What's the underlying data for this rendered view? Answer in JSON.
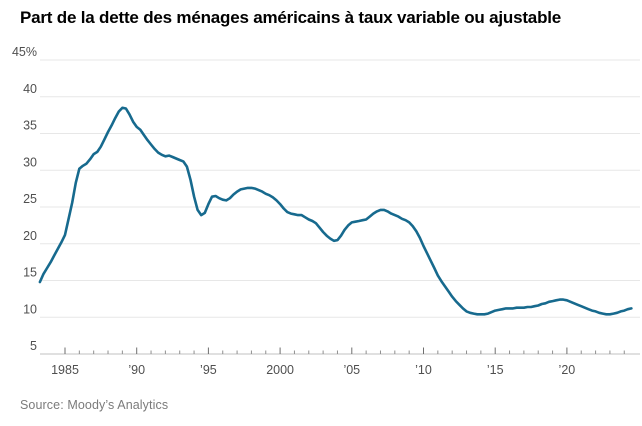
{
  "title": "Part de la dette des ménages américains à taux variable ou ajustable",
  "source": "Source: Moody’s Analytics",
  "colors": {
    "line": "#176A8E",
    "gridline": "#e7e7e7",
    "axis": "#c0c0c0",
    "tick": "#8f8f8f",
    "label": "#4f4f4f",
    "title": "#000000",
    "source_text": "#7b7b7b",
    "background": "#ffffff"
  },
  "chart_data": {
    "type": "line",
    "title": "Part de la dette des ménages américains à taux variable ou ajustable",
    "xlabel": "",
    "ylabel": "",
    "unit": "%",
    "grid": "horizontal",
    "legend": "none",
    "ylim": [
      5,
      45
    ],
    "ytick_values": [
      45,
      40,
      35,
      30,
      25,
      20,
      15,
      10,
      5
    ],
    "ytick_labels": [
      "45%",
      "40",
      "35",
      "30",
      "25",
      "20",
      "15",
      "10",
      "5"
    ],
    "xlim": [
      1983.25,
      2024.6
    ],
    "xtick_major_years": [
      1985,
      1990,
      1995,
      2000,
      2005,
      2010,
      2015,
      2020
    ],
    "xtick_labels": [
      "1985",
      "’90",
      "’95",
      "2000",
      "’05",
      "’10",
      "’15",
      "’20"
    ],
    "xtick_minor_first": 1985,
    "xtick_minor_last": 2024,
    "series": [
      {
        "name": "Part de la dette des ménages à taux variable ou ajustable (%)",
        "color": "#176A8E",
        "points": [
          [
            1983.25,
            14.8
          ],
          [
            1983.5,
            15.9
          ],
          [
            1983.75,
            16.7
          ],
          [
            1984,
            17.5
          ],
          [
            1984.25,
            18.4
          ],
          [
            1984.5,
            19.3
          ],
          [
            1984.75,
            20.2
          ],
          [
            1985,
            21.2
          ],
          [
            1985.25,
            23.4
          ],
          [
            1985.5,
            25.6
          ],
          [
            1985.75,
            28.3
          ],
          [
            1986,
            30.2
          ],
          [
            1986.25,
            30.6
          ],
          [
            1986.5,
            30.9
          ],
          [
            1986.75,
            31.5
          ],
          [
            1987,
            32.2
          ],
          [
            1987.25,
            32.5
          ],
          [
            1987.5,
            33.2
          ],
          [
            1987.75,
            34.2
          ],
          [
            1988,
            35.2
          ],
          [
            1988.25,
            36.1
          ],
          [
            1988.5,
            37.1
          ],
          [
            1988.75,
            38
          ],
          [
            1989,
            38.5
          ],
          [
            1989.25,
            38.4
          ],
          [
            1989.5,
            37.6
          ],
          [
            1989.75,
            36.6
          ],
          [
            1990,
            35.9
          ],
          [
            1990.25,
            35.5
          ],
          [
            1990.5,
            34.8
          ],
          [
            1990.75,
            34.1
          ],
          [
            1991,
            33.5
          ],
          [
            1991.25,
            32.9
          ],
          [
            1991.5,
            32.4
          ],
          [
            1991.75,
            32.1
          ],
          [
            1992,
            31.9
          ],
          [
            1992.25,
            32
          ],
          [
            1992.5,
            31.8
          ],
          [
            1992.75,
            31.6
          ],
          [
            1993,
            31.4
          ],
          [
            1993.25,
            31.2
          ],
          [
            1993.5,
            30.5
          ],
          [
            1993.75,
            28.7
          ],
          [
            1994,
            26.4
          ],
          [
            1994.25,
            24.6
          ],
          [
            1994.5,
            23.9
          ],
          [
            1994.75,
            24.2
          ],
          [
            1995,
            25.4
          ],
          [
            1995.25,
            26.4
          ],
          [
            1995.5,
            26.5
          ],
          [
            1995.75,
            26.2
          ],
          [
            1996,
            26
          ],
          [
            1996.25,
            25.9
          ],
          [
            1996.5,
            26.2
          ],
          [
            1996.75,
            26.7
          ],
          [
            1997,
            27.1
          ],
          [
            1997.25,
            27.4
          ],
          [
            1997.5,
            27.5
          ],
          [
            1997.75,
            27.6
          ],
          [
            1998,
            27.6
          ],
          [
            1998.25,
            27.5
          ],
          [
            1998.5,
            27.3
          ],
          [
            1998.75,
            27.1
          ],
          [
            1999,
            26.8
          ],
          [
            1999.25,
            26.6
          ],
          [
            1999.5,
            26.3
          ],
          [
            1999.75,
            25.9
          ],
          [
            2000,
            25.4
          ],
          [
            2000.25,
            24.8
          ],
          [
            2000.5,
            24.3
          ],
          [
            2000.75,
            24.1
          ],
          [
            2001,
            24
          ],
          [
            2001.25,
            23.9
          ],
          [
            2001.5,
            23.9
          ],
          [
            2001.75,
            23.6
          ],
          [
            2002,
            23.3
          ],
          [
            2002.25,
            23.1
          ],
          [
            2002.5,
            22.8
          ],
          [
            2002.75,
            22.2
          ],
          [
            2003,
            21.6
          ],
          [
            2003.25,
            21.1
          ],
          [
            2003.5,
            20.7
          ],
          [
            2003.75,
            20.4
          ],
          [
            2004,
            20.5
          ],
          [
            2004.25,
            21.1
          ],
          [
            2004.5,
            21.9
          ],
          [
            2004.75,
            22.5
          ],
          [
            2005,
            22.9
          ],
          [
            2005.25,
            23
          ],
          [
            2005.5,
            23.1
          ],
          [
            2005.75,
            23.2
          ],
          [
            2006,
            23.3
          ],
          [
            2006.25,
            23.7
          ],
          [
            2006.5,
            24.1
          ],
          [
            2006.75,
            24.4
          ],
          [
            2007,
            24.6
          ],
          [
            2007.25,
            24.6
          ],
          [
            2007.5,
            24.4
          ],
          [
            2007.75,
            24.1
          ],
          [
            2008,
            23.9
          ],
          [
            2008.25,
            23.7
          ],
          [
            2008.5,
            23.4
          ],
          [
            2008.75,
            23.2
          ],
          [
            2009,
            22.9
          ],
          [
            2009.25,
            22.4
          ],
          [
            2009.5,
            21.7
          ],
          [
            2009.75,
            20.8
          ],
          [
            2010,
            19.7
          ],
          [
            2010.25,
            18.7
          ],
          [
            2010.5,
            17.7
          ],
          [
            2010.75,
            16.7
          ],
          [
            2011,
            15.7
          ],
          [
            2011.25,
            14.9
          ],
          [
            2011.5,
            14.2
          ],
          [
            2011.75,
            13.5
          ],
          [
            2012,
            12.8
          ],
          [
            2012.25,
            12.2
          ],
          [
            2012.5,
            11.7
          ],
          [
            2012.75,
            11.2
          ],
          [
            2013,
            10.8
          ],
          [
            2013.25,
            10.6
          ],
          [
            2013.5,
            10.5
          ],
          [
            2013.75,
            10.4
          ],
          [
            2014,
            10.4
          ],
          [
            2014.25,
            10.4
          ],
          [
            2014.5,
            10.5
          ],
          [
            2014.75,
            10.7
          ],
          [
            2015,
            10.9
          ],
          [
            2015.25,
            11
          ],
          [
            2015.5,
            11.1
          ],
          [
            2015.75,
            11.2
          ],
          [
            2016,
            11.2
          ],
          [
            2016.25,
            11.2
          ],
          [
            2016.5,
            11.3
          ],
          [
            2016.75,
            11.3
          ],
          [
            2017,
            11.3
          ],
          [
            2017.25,
            11.4
          ],
          [
            2017.5,
            11.4
          ],
          [
            2017.75,
            11.5
          ],
          [
            2018,
            11.6
          ],
          [
            2018.25,
            11.8
          ],
          [
            2018.5,
            11.9
          ],
          [
            2018.75,
            12.1
          ],
          [
            2019,
            12.2
          ],
          [
            2019.25,
            12.3
          ],
          [
            2019.5,
            12.4
          ],
          [
            2019.75,
            12.4
          ],
          [
            2020,
            12.3
          ],
          [
            2020.25,
            12.1
          ],
          [
            2020.5,
            11.9
          ],
          [
            2020.75,
            11.7
          ],
          [
            2021,
            11.5
          ],
          [
            2021.25,
            11.3
          ],
          [
            2021.5,
            11.1
          ],
          [
            2021.75,
            10.9
          ],
          [
            2022,
            10.8
          ],
          [
            2022.25,
            10.6
          ],
          [
            2022.5,
            10.5
          ],
          [
            2022.75,
            10.4
          ],
          [
            2023,
            10.4
          ],
          [
            2023.25,
            10.5
          ],
          [
            2023.5,
            10.6
          ],
          [
            2023.75,
            10.8
          ],
          [
            2024,
            10.9
          ],
          [
            2024.25,
            11.1
          ],
          [
            2024.5,
            11.2
          ]
        ]
      }
    ]
  }
}
